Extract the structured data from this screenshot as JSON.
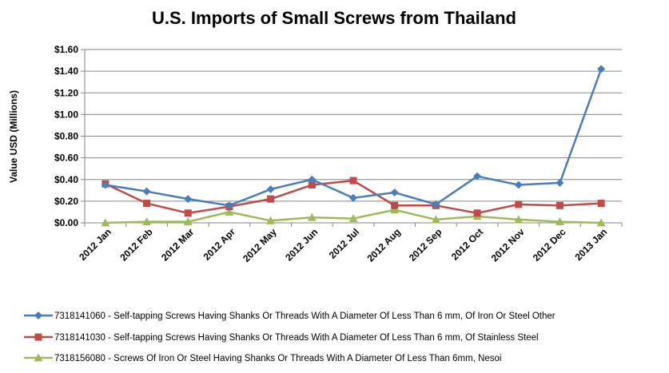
{
  "chart_data": {
    "type": "line",
    "title": "U.S. Imports of Small Screws from Thailand",
    "xlabel": "",
    "ylabel": "Value USD (Millions)",
    "ylim": [
      0,
      1.6
    ],
    "yticks": [
      "$0.00",
      "$0.20",
      "$0.40",
      "$0.60",
      "$0.80",
      "$1.00",
      "$1.20",
      "$1.40",
      "$1.60"
    ],
    "ytick_values": [
      0,
      0.2,
      0.4,
      0.6,
      0.8,
      1.0,
      1.2,
      1.4,
      1.6
    ],
    "grid": true,
    "legend_position": "bottom",
    "categories": [
      "2012 Jan",
      "2012 Feb",
      "2012 Mar",
      "2012 Apr",
      "2012 May",
      "2012 Jun",
      "2012 Jul",
      "2012 Aug",
      "2012 Sep",
      "2012 Oct",
      "2012 Nov",
      "2012 Dec",
      "2013 Jan"
    ],
    "series": [
      {
        "name": "7318141060 - Self-tapping Screws Having Shanks Or Threads With A Diameter Of Less Than 6 mm, Of Iron Or Steel Other",
        "color": "#4a7ebb",
        "marker": "diamond",
        "values": [
          0.35,
          0.29,
          0.22,
          0.16,
          0.31,
          0.4,
          0.23,
          0.28,
          0.17,
          0.43,
          0.35,
          0.37,
          1.42
        ]
      },
      {
        "name": "7318141030 - Self-tapping Screws Having Shanks Or Threads With A Diameter Of Less Than 6 mm, Of Stainless Steel",
        "color": "#be4b48",
        "marker": "square",
        "values": [
          0.36,
          0.18,
          0.09,
          0.15,
          0.22,
          0.35,
          0.39,
          0.16,
          0.16,
          0.09,
          0.17,
          0.16,
          0.18
        ]
      },
      {
        "name": "7318156080 - Screws Of Iron Or Steel Having Shanks Or Threads With A Diameter Of Less Than 6mm, Nesoi",
        "color": "#9bbb59",
        "marker": "triangle",
        "values": [
          0.0,
          0.01,
          0.01,
          0.1,
          0.02,
          0.05,
          0.04,
          0.12,
          0.03,
          0.06,
          0.03,
          0.01,
          0.0
        ]
      }
    ]
  }
}
